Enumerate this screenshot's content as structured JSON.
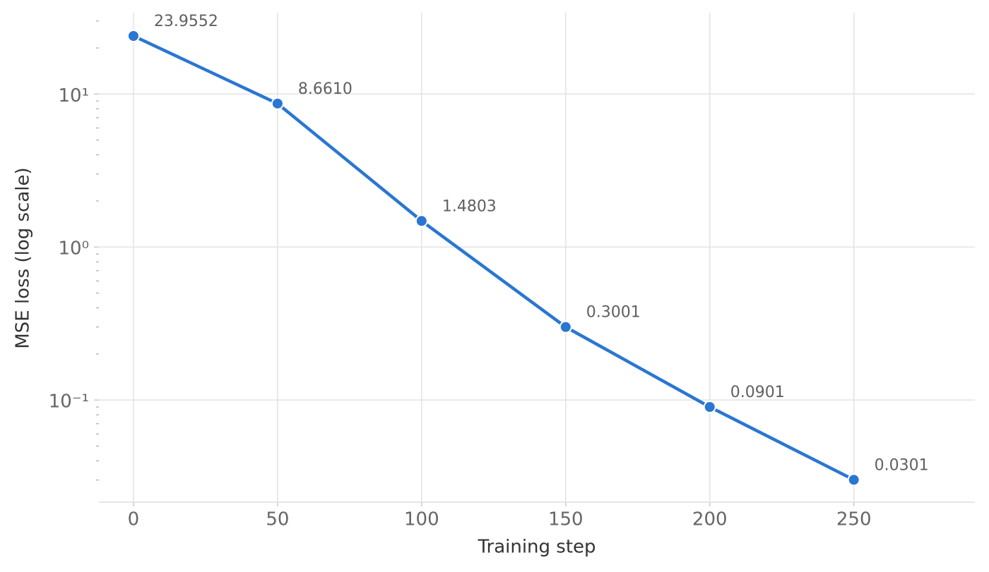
{
  "chart_data": {
    "type": "line",
    "x_label": "Training step",
    "y_label": "MSE loss (log scale)",
    "x": [
      0,
      50,
      100,
      150,
      200,
      250
    ],
    "series": [
      {
        "color": "#2a76d2",
        "values": [
          23.9552,
          8.661,
          1.4803,
          0.3001,
          0.0901,
          0.0301
        ],
        "value_labels": [
          "23.9552",
          "8.6610",
          "1.4803",
          "0.3001",
          "0.0901",
          "0.0301"
        ]
      }
    ],
    "xlim": [
      -12,
      292
    ],
    "xticks": [
      0,
      50,
      100,
      150,
      200,
      250
    ],
    "ylim": [
      0.0215,
      34
    ],
    "ylog": true,
    "yticks": [
      {
        "value": 0.1,
        "label": "10⁻¹"
      },
      {
        "value": 1,
        "label": "10⁰"
      },
      {
        "value": 10,
        "label": "10¹"
      }
    ],
    "yminorticks": [
      0.03,
      0.04,
      0.05,
      0.06,
      0.07,
      0.08,
      0.09,
      0.2,
      0.3,
      0.4,
      0.5,
      0.6,
      0.7,
      0.8,
      0.9,
      2,
      3,
      4,
      5,
      6,
      7,
      8,
      9,
      20,
      30
    ],
    "grid": true
  }
}
